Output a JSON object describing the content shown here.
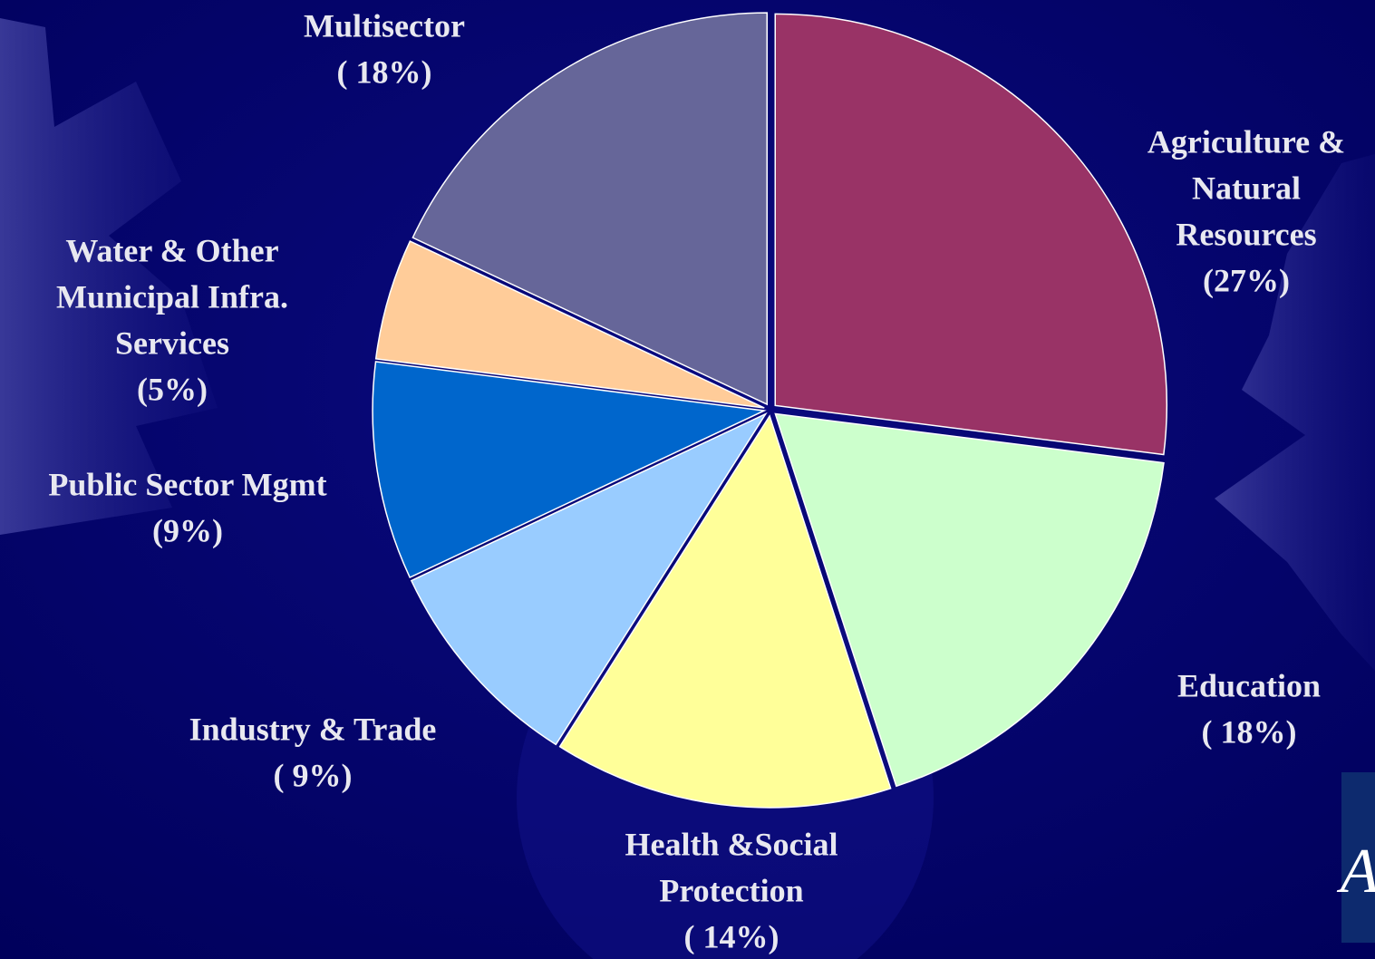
{
  "chart_data": {
    "type": "pie",
    "categories": [
      [
        "Agriculture &",
        "Natural",
        "Resources"
      ],
      [
        "Education"
      ],
      [
        "Health &Social",
        "Protection"
      ],
      [
        "Industry & Trade"
      ],
      [
        "Public Sector Mgmt"
      ],
      [
        "Water & Other",
        "Municipal Infra.",
        "Services"
      ],
      [
        "Multisector"
      ]
    ],
    "values": [
      27,
      18,
      14,
      9,
      9,
      5,
      18
    ],
    "value_labels": [
      "(27%)",
      "( 18%)",
      "( 14%)",
      "( 9%)",
      "(9%)",
      "(5%)",
      "( 18%)"
    ],
    "colors": [
      "#993366",
      "#ccffcc",
      "#ffff99",
      "#99ccff",
      "#0066cc",
      "#ffcc99",
      "#666699"
    ]
  },
  "logo": "A"
}
